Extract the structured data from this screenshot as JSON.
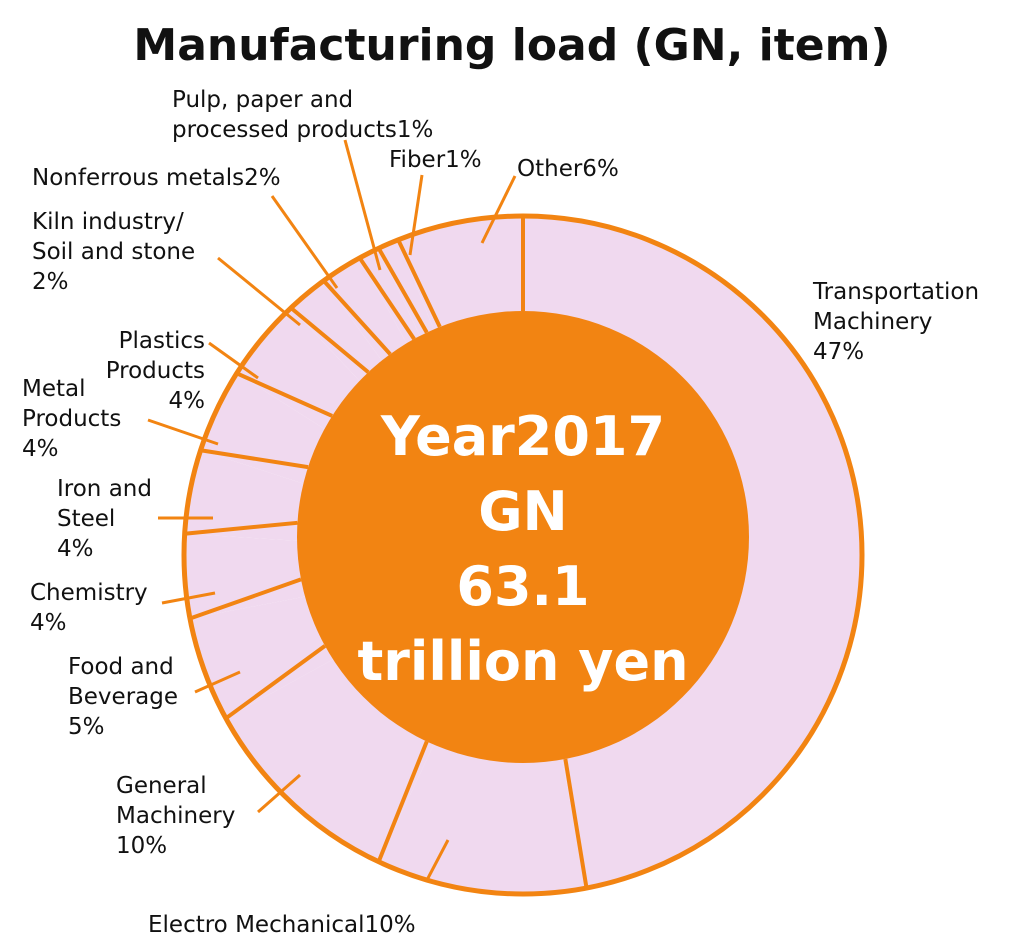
{
  "chart_data": {
    "type": "pie",
    "title": "Manufacturing load (GN, item)",
    "center_text": [
      "Year2017",
      "GN",
      "63.1",
      "trillion yen"
    ],
    "unit": "%",
    "colors": {
      "slice_fill": "#f0d9ef",
      "accent": "#f28412",
      "text": "#111111",
      "center_text": "#ffffff"
    },
    "slices": [
      {
        "label": "Transportation Machinery",
        "display": [
          "Transportation",
          "Machinery",
          "47%"
        ],
        "value": 47
      },
      {
        "label": "Electro Mechanical",
        "display": [
          "Electro Mechanical10%"
        ],
        "value": 10
      },
      {
        "label": "General Machinery",
        "display": [
          "General",
          "Machinery",
          "10%"
        ],
        "value": 10
      },
      {
        "label": "Food and Beverage",
        "display": [
          "Food and",
          "Beverage",
          "5%"
        ],
        "value": 5
      },
      {
        "label": "Chemistry",
        "display": [
          "Chemistry",
          "4%"
        ],
        "value": 4
      },
      {
        "label": "Iron and Steel",
        "display": [
          "Iron and",
          "Steel",
          "4%"
        ],
        "value": 4
      },
      {
        "label": "Metal Products",
        "display": [
          "Metal",
          "Products",
          "4%"
        ],
        "value": 4
      },
      {
        "label": "Plastics Products",
        "display": [
          "Plastics",
          "Products",
          "4%"
        ],
        "value": 4
      },
      {
        "label": "Kiln industry/Soil and stone",
        "display": [
          "Kiln industry/",
          "Soil and stone",
          "2%"
        ],
        "value": 2
      },
      {
        "label": "Nonferrous metals",
        "display": [
          "Nonferrous metals2%"
        ],
        "value": 2
      },
      {
        "label": "Pulp, paper and processed products",
        "display": [
          "Pulp, paper and",
          "processed products1%"
        ],
        "value": 1
      },
      {
        "label": "Fiber",
        "display": [
          "Fiber1%"
        ],
        "value": 1
      },
      {
        "label": "Other",
        "display": [
          "Other6%"
        ],
        "value": 6
      }
    ]
  }
}
